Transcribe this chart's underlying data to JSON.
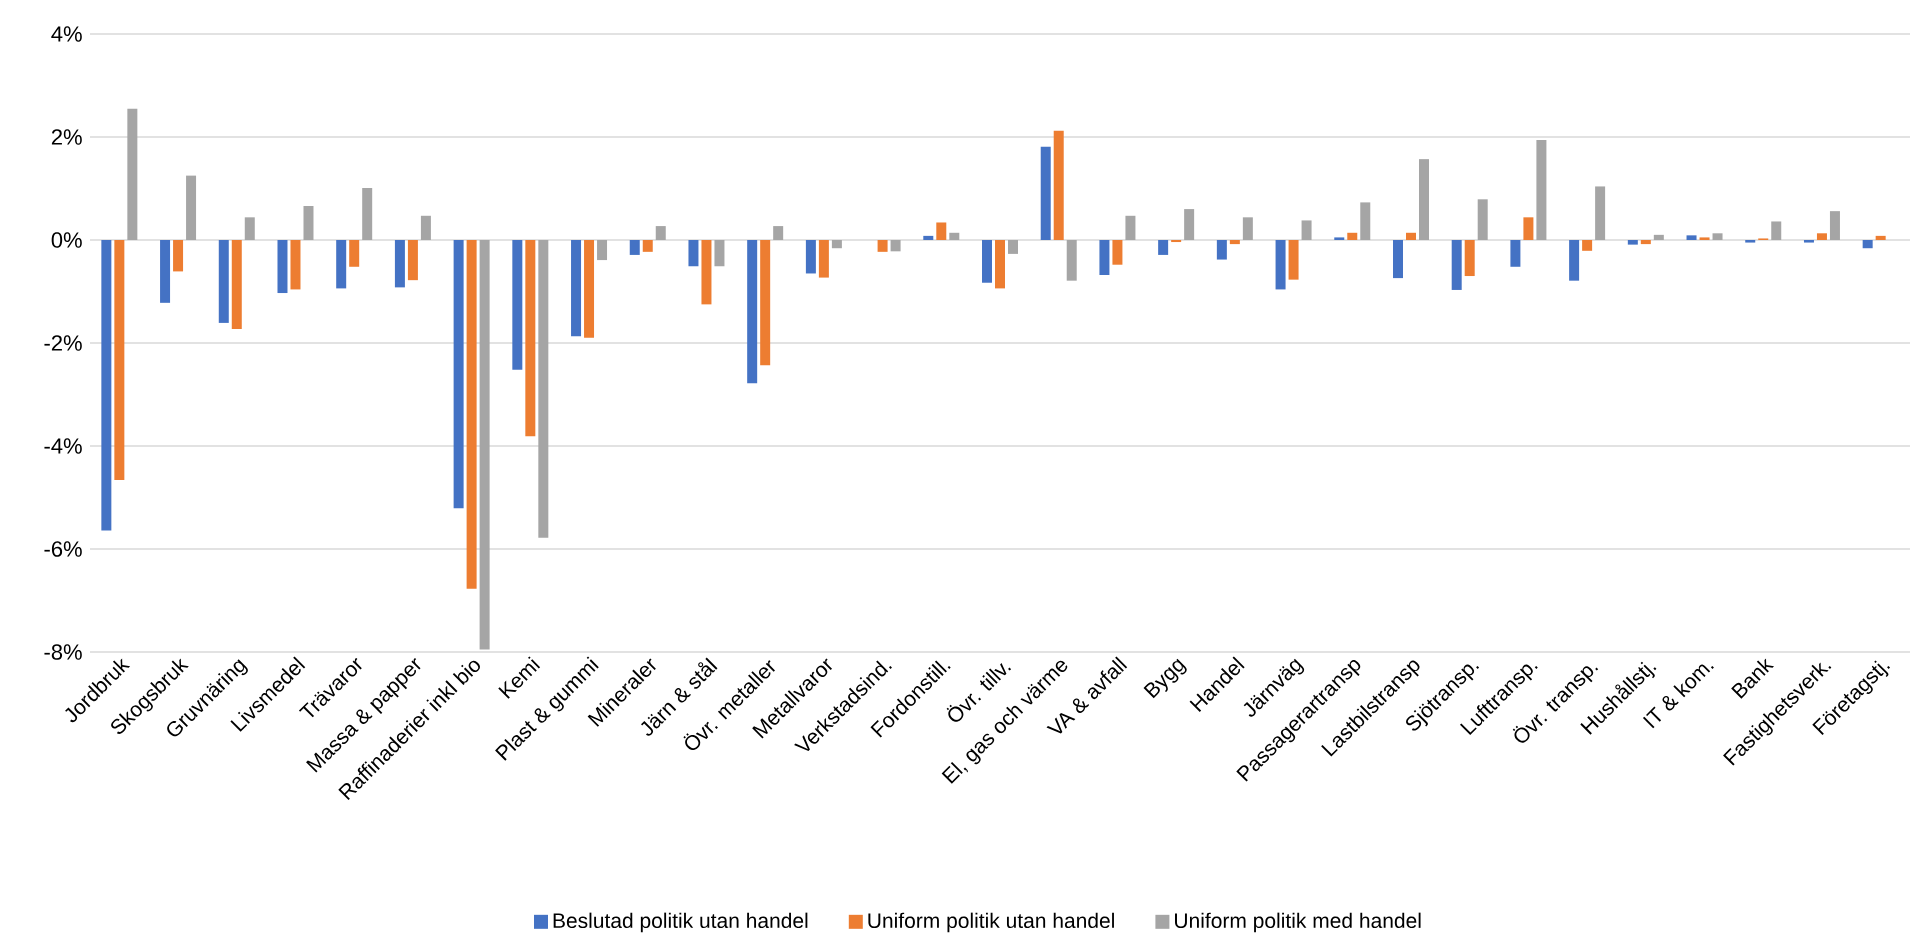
{
  "chart_data": {
    "type": "bar",
    "categories": [
      "Jordbruk",
      "Skogsbruk",
      "Gruvnäring",
      "Livsmedel",
      "Trävaror",
      "Massa & papper",
      "Raffinaderier inkl bio",
      "Kemi",
      "Plast & gummi",
      "Mineraler",
      "Järn & stål",
      "Övr. metaller",
      "Metallvaror",
      "Verkstadsind.",
      "Fordonstill.",
      "Övr. tillv.",
      "El, gas och värme",
      "VA & avfall",
      "Bygg",
      "Handel",
      "Järnväg",
      "Passagerartransp",
      "Lastbilstransp",
      "Sjötransp.",
      "Lufttransp.",
      "Övr. transp.",
      "Hushållstj.",
      "IT & kom.",
      "Bank",
      "Fastighetsverk.",
      "Företagstj."
    ],
    "series": [
      {
        "name": "Beslutad politik utan handel",
        "color": "#4472c4",
        "values": [
          -5.64,
          -1.22,
          -1.61,
          -1.03,
          -0.94,
          -0.92,
          -5.21,
          -2.52,
          -1.87,
          -0.29,
          -0.51,
          -2.78,
          -0.65,
          0,
          0.08,
          -0.83,
          1.81,
          -0.68,
          -0.29,
          -0.38,
          -0.96,
          0.05,
          -0.74,
          -0.97,
          -0.52,
          -0.79,
          -0.09,
          0.09,
          -0.05,
          -0.05,
          -0.16
        ]
      },
      {
        "name": "Uniform politik utan handel",
        "color": "#ed7d31",
        "values": [
          -4.66,
          -0.61,
          -1.73,
          -0.96,
          -0.52,
          -0.78,
          -6.77,
          -3.81,
          -1.9,
          -0.23,
          -1.25,
          -2.43,
          -0.73,
          -0.23,
          0.34,
          -0.94,
          2.12,
          -0.48,
          -0.04,
          -0.08,
          -0.77,
          0.14,
          0.14,
          -0.7,
          0.44,
          -0.21,
          -0.08,
          0.05,
          0.03,
          0.13,
          0.08
        ]
      },
      {
        "name": "Uniform politik med handel",
        "color": "#a5a5a5",
        "values": [
          2.55,
          1.25,
          0.44,
          0.66,
          1.01,
          0.47,
          -7.95,
          -5.78,
          -0.39,
          0.27,
          -0.51,
          0.27,
          -0.16,
          -0.22,
          0.14,
          -0.27,
          -0.79,
          0.47,
          0.6,
          0.44,
          0.38,
          0.73,
          1.57,
          0.79,
          1.94,
          1.04,
          0.1,
          0.13,
          0.36,
          0.56,
          0
        ]
      }
    ],
    "ylim": [
      -8,
      4
    ],
    "yticks": [
      {
        "value": -8,
        "label": "-8%"
      },
      {
        "value": -6,
        "label": "-6%"
      },
      {
        "value": -4,
        "label": "-4%"
      },
      {
        "value": -2,
        "label": "-2%"
      },
      {
        "value": 0,
        "label": "0%"
      },
      {
        "value": 2,
        "label": "2%"
      },
      {
        "value": 4,
        "label": "4%"
      }
    ],
    "grid": "y",
    "legend": "bottom"
  }
}
